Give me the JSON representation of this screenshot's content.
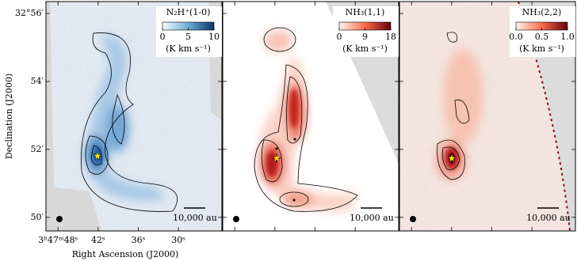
{
  "chart_data": [
    {
      "type": "map",
      "title": "N₂H⁺(1-0)",
      "colorbar_unit": "(K km s⁻¹)",
      "clim": [
        0,
        10
      ],
      "cticks": [
        0,
        5,
        10
      ],
      "scale_bar": "10,000 au",
      "xlabel": "Right Ascension (J2000)",
      "ylabel": "Declination (J2000)",
      "xlim": [
        49.8,
        23.5
      ],
      "ylim": [
        49.6,
        56.35
      ],
      "xticks": [
        {
          "value": 48,
          "label": "3ʰ47ᵐ48ˢ"
        },
        {
          "value": 42,
          "label": "42ˢ"
        },
        {
          "value": 36,
          "label": "36ˢ"
        },
        {
          "value": 30,
          "label": "30ˢ"
        }
      ],
      "yticks": [
        {
          "value": 56,
          "label": "32°56′"
        },
        {
          "value": 54,
          "label": "54′"
        },
        {
          "value": 52,
          "label": "52′"
        },
        {
          "value": 50,
          "label": "50′"
        }
      ]
    },
    {
      "type": "map",
      "title": "NH₃(1,1)",
      "colorbar_unit": "(K km s⁻¹)",
      "clim": [
        0,
        18
      ],
      "cticks": [
        0,
        9,
        18
      ],
      "scale_bar": "10,000 au"
    },
    {
      "type": "map",
      "title": "NH₃(2,2)",
      "colorbar_unit": "(K km s⁻¹)",
      "clim": [
        0,
        1
      ],
      "cticks": [
        {
          "value": 0,
          "label": "0.0"
        },
        {
          "value": 0.5,
          "label": "0.5"
        },
        {
          "value": 1,
          "label": "1.0"
        }
      ],
      "scale_bar": "10,000 au"
    }
  ]
}
